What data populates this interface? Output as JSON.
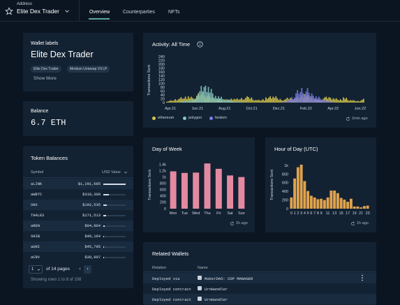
{
  "header": {
    "address_label": "Address",
    "address_name": "Elite Dex Trader",
    "tabs": [
      "Overview",
      "Counterparties",
      "NFTs"
    ]
  },
  "wallet": {
    "title": "Wallet labels",
    "name": "Elite Dex Trader",
    "tags": [
      "Elite Dex Trader",
      "Medium Uniswap V3 LP"
    ],
    "show_more": "Show More"
  },
  "balance": {
    "title": "Balance",
    "value": "6.7 ETH"
  },
  "tokens": {
    "title": "Token Balances",
    "col_symbol": "Symbol",
    "col_value": "USD Value",
    "rows": [
      {
        "symbol": "aLINK",
        "value": "$1,291,685",
        "pct": 1.0
      },
      {
        "symbol": "aWBTC",
        "value": "$318,300",
        "pct": 0.25
      },
      {
        "symbol": "SNX",
        "value": "$192,535",
        "pct": 0.15
      },
      {
        "symbol": "THALES",
        "value": "$171,513",
        "pct": 0.13
      },
      {
        "symbol": "aREN",
        "value": "$94,864",
        "pct": 0.07
      },
      {
        "symbol": "SHIB",
        "value": "$48,164",
        "pct": 0.04
      },
      {
        "symbol": "aUNI",
        "value": "$45,795",
        "pct": 0.035
      },
      {
        "symbol": "aCRV",
        "value": "$30,907",
        "pct": 0.025
      }
    ],
    "page": "1",
    "of_pages": "of 14 pages",
    "prev": "‹",
    "next": "›",
    "showing": "Showing rows 1 to 8 of 108"
  },
  "activity": {
    "title": "Activity: All Time",
    "ylabel": "Transactions Sent",
    "updated": "2min ago",
    "legend": [
      {
        "name": "ethereum",
        "color": "#d8c84a"
      },
      {
        "name": "polygon",
        "color": "#86c9c4"
      },
      {
        "name": "fantom",
        "color": "#7c7fe6"
      }
    ]
  },
  "dow": {
    "title": "Day of Week",
    "ylabel": "Transactions Sent",
    "updated": "1h ago"
  },
  "hod": {
    "title": "Hour of Day (UTC)",
    "ylabel": "Transactions Sent",
    "updated": "1h ago"
  },
  "related": {
    "title": "Related Wallets",
    "col_relation": "Relation",
    "col_name": "Name",
    "rows": [
      {
        "relation": "Deployed via",
        "name": "MakerDAO: CDP MANAGER"
      },
      {
        "relation": "Deployed contract",
        "name": "UrnHandler"
      },
      {
        "relation": "Deployed contract",
        "name": "UrnHandler"
      }
    ]
  },
  "chart_data": [
    {
      "type": "area",
      "title": "Activity: All Time",
      "ylabel": "Transactions Sent",
      "x_ticks": [
        "Apr.21",
        "Jun.21",
        "Aug.21",
        "Oct.21",
        "Dec.21",
        "Feb.22",
        "Apr.22",
        "Jun.22"
      ],
      "y_ticks": [
        0,
        20,
        40,
        60,
        80,
        100,
        120,
        140,
        160,
        180,
        200,
        220,
        240
      ],
      "ylim": [
        0,
        240
      ],
      "series": [
        {
          "name": "ethereum",
          "values": [
            8,
            12,
            20,
            28,
            35,
            30,
            25,
            45,
            60,
            40,
            30,
            25,
            20,
            18,
            15,
            22,
            20,
            25,
            30,
            28,
            18,
            15,
            20,
            25,
            35,
            30,
            20,
            18,
            25,
            22,
            30,
            45,
            40,
            35,
            20,
            18,
            25,
            30,
            28,
            22,
            20,
            25,
            15,
            12,
            10,
            18
          ]
        },
        {
          "name": "polygon",
          "values": [
            0,
            0,
            0,
            5,
            10,
            12,
            20,
            55,
            85,
            100,
            70,
            40,
            30,
            20,
            15,
            8,
            5,
            3,
            0,
            0,
            0,
            0,
            0,
            0,
            0,
            0,
            0,
            0,
            0,
            0,
            0,
            0,
            0,
            0,
            0,
            0,
            0,
            0,
            0,
            0,
            0,
            0,
            0,
            0,
            0,
            0
          ]
        },
        {
          "name": "fantom",
          "values": [
            0,
            0,
            0,
            0,
            0,
            0,
            0,
            0,
            0,
            0,
            0,
            0,
            0,
            0,
            0,
            0,
            0,
            0,
            0,
            0,
            0,
            0,
            0,
            0,
            0,
            0,
            0,
            5,
            15,
            30,
            60,
            80,
            70,
            50,
            40,
            30,
            20,
            10,
            5,
            0,
            0,
            0,
            0,
            0,
            0,
            0
          ]
        }
      ]
    },
    {
      "type": "bar",
      "title": "Day of Week",
      "ylabel": "Transactions Sent",
      "categories": [
        "Mon",
        "Tue",
        "Wed",
        "Thu",
        "Fri",
        "Sat",
        "Sun"
      ],
      "values": [
        1180,
        1130,
        1140,
        1430,
        1260,
        1050,
        1000
      ],
      "y_ticks": [
        "0",
        "200",
        "400",
        "600",
        "800",
        "1k",
        "1.2k",
        "1.4k"
      ],
      "ylim": [
        0,
        1500
      ],
      "color": "#e48aa0"
    },
    {
      "type": "bar",
      "title": "Hour of Day (UTC)",
      "ylabel": "Transactions Sent",
      "categories": [
        "0",
        "1",
        "2",
        "3",
        "4",
        "5",
        "6",
        "7",
        "8",
        "9",
        "10",
        "11",
        "12",
        "13",
        "14",
        "15",
        "16",
        "17",
        "18",
        "19",
        "20",
        "21",
        "22",
        "23"
      ],
      "x_tick_labels": [
        "0",
        "1",
        "2",
        "3",
        "4",
        "5",
        "6",
        "7",
        "8",
        "9",
        "11",
        "13",
        "15",
        "17",
        "19",
        "21",
        "23"
      ],
      "values": [
        260,
        700,
        960,
        1020,
        640,
        410,
        300,
        260,
        220,
        230,
        200,
        260,
        420,
        420,
        360,
        250,
        210,
        160,
        230,
        50,
        50,
        30,
        60,
        70
      ],
      "y_ticks": [
        "0",
        "200",
        "400",
        "600",
        "800",
        "1k"
      ],
      "ylim": [
        0,
        1100
      ],
      "color": "#e0a34e"
    }
  ]
}
